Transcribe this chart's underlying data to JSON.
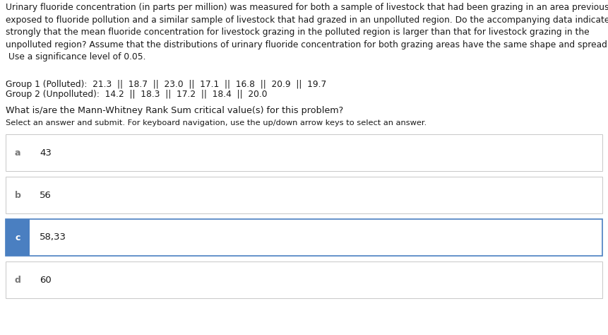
{
  "title_text": "Urinary fluoride concentration (in parts per million) was measured for both a sample of livestock that had been grazing in an area previously\nexposed to fluoride pollution and a similar sample of livestock that had grazed in an unpolluted region. Do the accompanying data indicate\nstrongly that the mean fluoride concentration for livestock grazing in the polluted region is larger than that for livestock grazing in the\nunpolluted region? Assume that the distributions of urinary fluoride concentration for both grazing areas have the same shape and spread.\n Use a significance level of 0.05.",
  "data_line1": "Group 1 (Polluted):  21.3  ||  18.7  ||  23.0  ||  17.1  ||  16.8  ||  20.9  ||  19.7",
  "data_line2": "Group 2 (Unpolluted):  14.2  ||  18.3  ||  17.2  ||  18.4  ||  20.0",
  "dot": ".",
  "question": "What is/are the Mann-Whitney Rank Sum critical value(s) for this problem?",
  "instruction": "Select an answer and submit. For keyboard navigation, use the up/down arrow keys to select an answer.",
  "options": [
    {
      "letter": "a",
      "text": "43",
      "selected": false
    },
    {
      "letter": "b",
      "text": "56",
      "selected": false
    },
    {
      "letter": "c",
      "text": "58,33",
      "selected": true
    },
    {
      "letter": "d",
      "text": "60",
      "selected": false
    }
  ],
  "selected_color": "#4a7fc1",
  "unselected_color": "#ffffff",
  "border_color": "#c8c8c8",
  "selected_border_color": "#4a7fc1",
  "text_color": "#1a1a1a",
  "selected_text_color": "#ffffff",
  "background_color": "#ffffff",
  "title_fontsize": 8.8,
  "body_fontsize": 8.8,
  "question_fontsize": 9.2,
  "instruction_fontsize": 8.2,
  "option_fontsize": 9.5,
  "letter_fontsize": 9.0
}
